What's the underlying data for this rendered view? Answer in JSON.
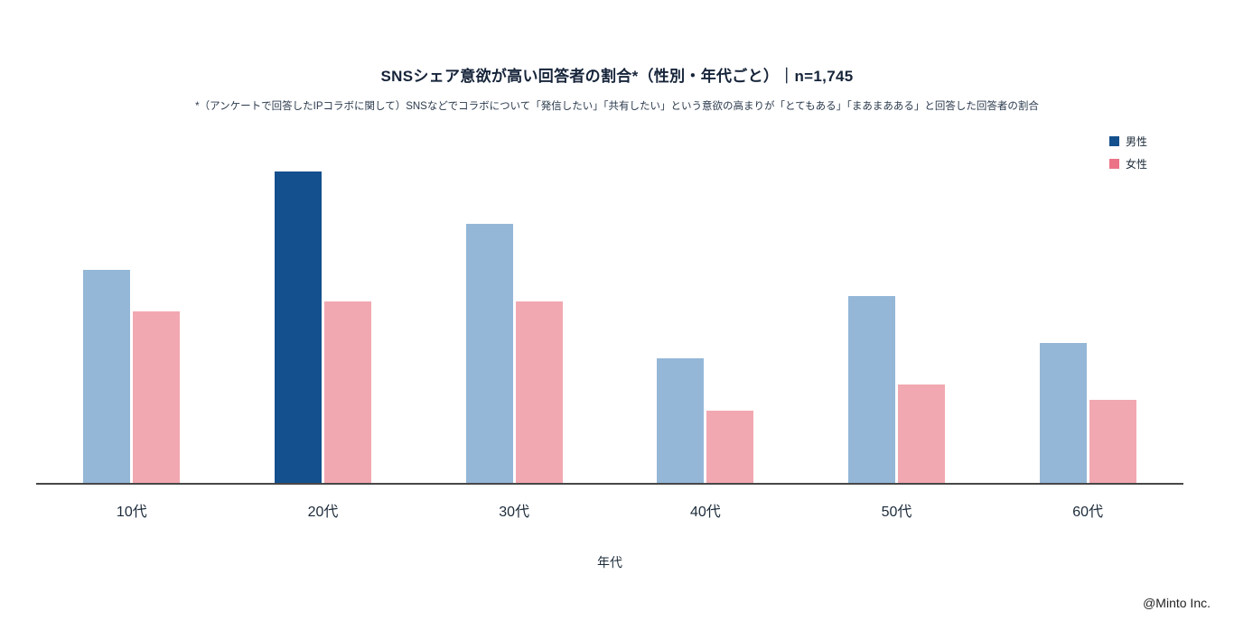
{
  "chart_data": {
    "type": "bar",
    "title": "SNSシェア意欲が高い回答者の割合*（性別・年代ごと）｜n=1,745",
    "subtitle": "*（アンケートで回答したIPコラボに関して）SNSなどでコラボについて「発信したい」「共有したい」という意欲の高まりが「とてもある」「まあまあある」と回答した回答者の割合",
    "categories": [
      "10代",
      "20代",
      "30代",
      "40代",
      "50代",
      "60代"
    ],
    "series": [
      {
        "name": "男性",
        "values": [
          41,
          60,
          50,
          24,
          36,
          27
        ],
        "color": "#94b7d7",
        "highlight_color": "#14508d",
        "highlight_index": 1,
        "legend_color": "#14508d"
      },
      {
        "name": "女性",
        "values": [
          33,
          35,
          35,
          14,
          19,
          16
        ],
        "color": "#f2a8b1",
        "legend_color": "#ec7285"
      }
    ],
    "xlabel": "年代",
    "ylim": [
      0,
      67
    ],
    "grid": false,
    "legend_position": "top-right",
    "footer": "@Minto Inc."
  }
}
